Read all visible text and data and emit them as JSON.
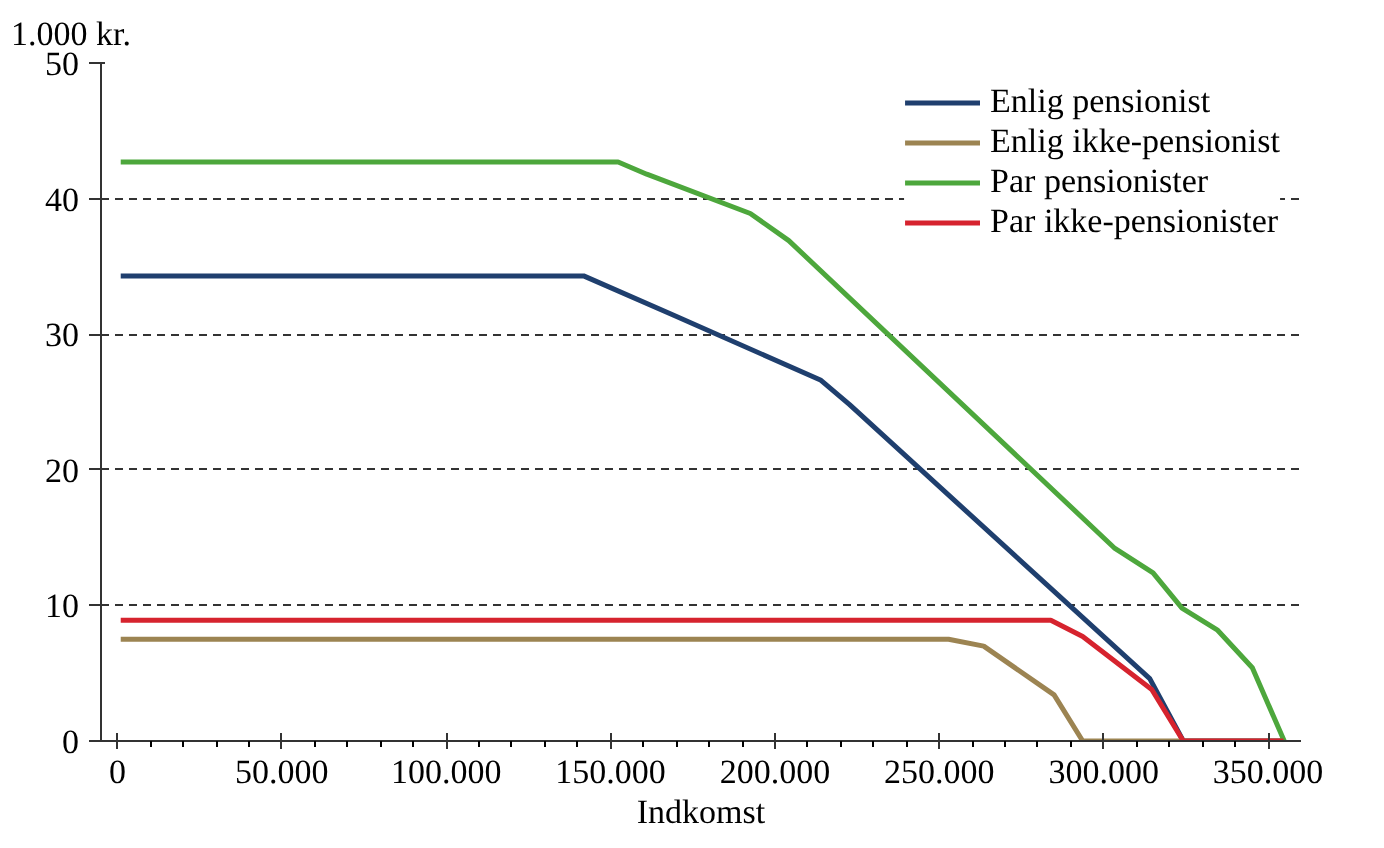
{
  "chart_data": {
    "type": "line",
    "ylabel": "1.000 kr.",
    "xlabel": "Indkomst",
    "xlim": [
      -5000,
      360000
    ],
    "ylim": [
      0,
      50
    ],
    "xticks": [
      0,
      {
        "value": 50000,
        "label": "50.000"
      },
      {
        "value": 100000,
        "label": "100.000"
      },
      {
        "value": 150000,
        "label": "150.000"
      },
      {
        "value": 200000,
        "label": "200.000"
      },
      {
        "value": 250000,
        "label": "250.000"
      },
      {
        "value": 300000,
        "label": "300.000"
      },
      {
        "value": 350000,
        "label": "350.000"
      }
    ],
    "yticks": [
      0,
      10,
      20,
      30,
      40,
      50
    ],
    "grid": "y",
    "legend": "top right",
    "marker": "none",
    "line_style": "solid",
    "series": [
      {
        "name": "Enlig pensionist",
        "color": "#1f3f6e",
        "x": [
          1000,
          141800,
          169200,
          214000,
          222700,
          314000,
          324200,
          354700
        ],
        "values": [
          34.3,
          34.3,
          31.4,
          26.6,
          24.8,
          4.6,
          0,
          0
        ]
      },
      {
        "name": "Enlig ikke-pensionist",
        "color": "#9c8452",
        "x": [
          1000,
          252800,
          263500,
          284900,
          293600,
          354700
        ],
        "values": [
          7.5,
          7.5,
          7.0,
          3.4,
          0,
          0
        ]
      },
      {
        "name": "Par pensionister",
        "color": "#4da73c",
        "x": [
          1000,
          152300,
          161000,
          192500,
          204200,
          303400,
          315000,
          323800,
          334500,
          345200,
          354900
        ],
        "values": [
          42.7,
          42.7,
          41.8,
          38.9,
          36.9,
          14.2,
          12.4,
          9.8,
          8.2,
          5.4,
          0
        ]
      },
      {
        "name": "Par ikke-pensionister",
        "color": "#d6232e",
        "x": [
          1000,
          283900,
          293600,
          314600,
          324200,
          354700
        ],
        "values": [
          8.9,
          8.9,
          7.7,
          3.8,
          0,
          0
        ]
      }
    ]
  }
}
